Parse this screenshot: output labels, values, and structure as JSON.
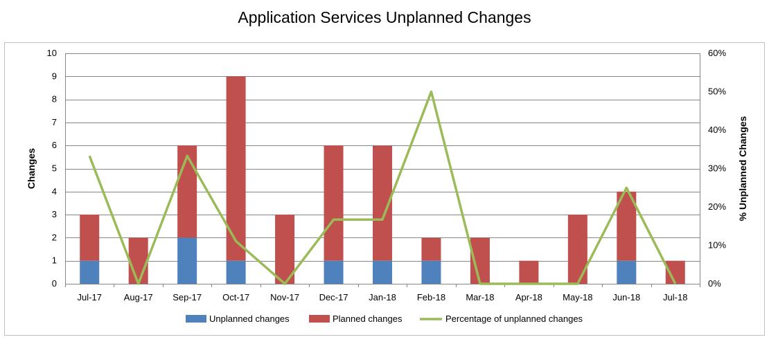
{
  "chart_data": {
    "type": "bar",
    "title": "Application Services Unplanned Changes",
    "categories": [
      "Jul-17",
      "Aug-17",
      "Sep-17",
      "Oct-17",
      "Nov-17",
      "Dec-17",
      "Jan-18",
      "Feb-18",
      "Mar-18",
      "Apr-18",
      "May-18",
      "Jun-18",
      "Jul-18"
    ],
    "series": [
      {
        "name": "Unplanned changes",
        "kind": "bar-stacked",
        "axis": "left",
        "color": "#4f81bd",
        "values": [
          1,
          0,
          2,
          1,
          0,
          1,
          1,
          1,
          0,
          0,
          0,
          1,
          0
        ]
      },
      {
        "name": "Planned changes",
        "kind": "bar-stacked",
        "axis": "left",
        "color": "#c0504d",
        "values": [
          2,
          2,
          4,
          8,
          3,
          5,
          5,
          1,
          2,
          1,
          3,
          3,
          1
        ]
      },
      {
        "name": "Percentage of unplanned changes",
        "kind": "line",
        "axis": "right",
        "color": "#9bbb59",
        "values": [
          33.3,
          0,
          33.3,
          11.1,
          0,
          16.7,
          16.7,
          50,
          0,
          0,
          0,
          25,
          0
        ]
      }
    ],
    "ylabel": "Changes",
    "y2label": "% Unplanned Changes",
    "ylim": [
      0,
      10
    ],
    "y2lim": [
      0,
      60
    ],
    "yticks": [
      "0",
      "1",
      "2",
      "3",
      "4",
      "5",
      "6",
      "7",
      "8",
      "9",
      "10"
    ],
    "y2ticks": [
      "0%",
      "10%",
      "20%",
      "30%",
      "40%",
      "50%",
      "60%"
    ],
    "grid": true,
    "legend_position": "bottom"
  }
}
